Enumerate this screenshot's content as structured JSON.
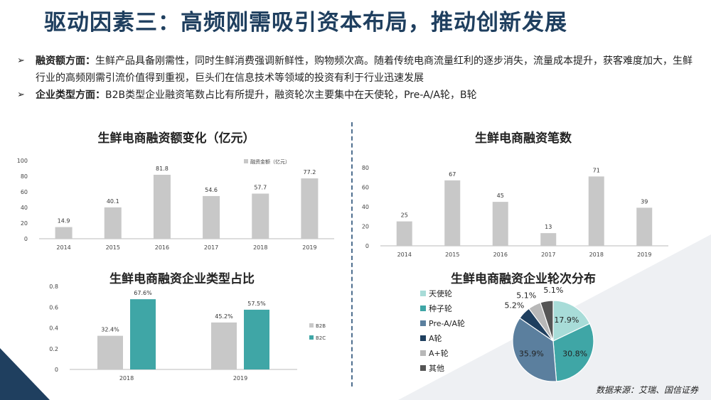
{
  "title": "驱动因素三：高频刚需吸引资本布局，推动创新发展",
  "bullets": [
    {
      "heading": "融资额方面：",
      "text": "生鲜产品具备刚需性，同时生鲜消费强调新鲜性，购物频次高。随着传统电商流量红利的逐步消失，流量成本提升，获客难度加大，生鲜行业的高频刚需引流价值得到重视，巨头们在信息技术等领域的投资有利于行业迅速发展"
    },
    {
      "heading": "企业类型方面：",
      "text": "B2B类型企业融资笔数占比有所提升，融资轮次主要集中在天使轮，Pre-A/A轮，B轮"
    }
  ],
  "source": "数据来源：艾瑞、国信证券",
  "colors": {
    "gray": "#c8c8c8",
    "teal": "#3fa6a6",
    "title": "#1f3f5f"
  },
  "chart_data": [
    {
      "type": "bar",
      "title": "生鲜电商融资额变化（亿元）",
      "categories": [
        "2014",
        "2015",
        "2016",
        "2017",
        "2018",
        "2019"
      ],
      "series": [
        {
          "name": "融资金额（亿元）",
          "values": [
            14.9,
            40.1,
            81.8,
            54.6,
            57.7,
            77.2
          ]
        }
      ],
      "ylim": [
        0,
        100
      ],
      "yticks": [
        "0",
        "20",
        "40",
        "60",
        "80",
        "100"
      ],
      "legend": "top-right"
    },
    {
      "type": "bar",
      "title": "生鲜电商融资笔数",
      "categories": [
        "2014",
        "2015",
        "2016",
        "2017",
        "2018",
        "2019"
      ],
      "series": [
        {
          "values": [
            25,
            67,
            45,
            13,
            71,
            39
          ]
        }
      ],
      "ylim": [
        0,
        80
      ],
      "yticks": [
        "0",
        "20",
        "40",
        "60",
        "80"
      ]
    },
    {
      "type": "bar",
      "title": "生鲜电商融资企业类型占比",
      "categories": [
        "2018",
        "2019"
      ],
      "series": [
        {
          "name": "B2B",
          "values": [
            0.324,
            0.452
          ],
          "labels": [
            "32.4%",
            "45.2%"
          ]
        },
        {
          "name": "B2C",
          "values": [
            0.676,
            0.575
          ],
          "labels": [
            "67.6%",
            "57.5%"
          ]
        }
      ],
      "ylim": [
        0,
        0.8
      ],
      "yticks": [
        "0",
        "0.2",
        "0.4",
        "0.6",
        "0.8"
      ],
      "legend": "right"
    },
    {
      "type": "pie",
      "title": "生鲜电商融资企业轮次分布",
      "slices": [
        {
          "label": "天使轮",
          "value": 17.9,
          "text": "17.9%",
          "color": "#a8dcd8"
        },
        {
          "label": "种子轮",
          "value": 30.8,
          "text": "30.8%",
          "color": "#3fa6a6"
        },
        {
          "label": "Pre-A/A轮",
          "value": 35.9,
          "text": "35.9%",
          "color": "#5b7f9e"
        },
        {
          "label": "A轮",
          "value": 5.2,
          "text": "5.2%",
          "color": "#1f3f5f"
        },
        {
          "label": "A+轮",
          "value": 5.1,
          "text": "5.1%",
          "color": "#b8b8b8"
        },
        {
          "label": "其他",
          "value": 5.1,
          "text": "5.1%",
          "color": "#555555"
        }
      ],
      "legend": "left"
    }
  ]
}
